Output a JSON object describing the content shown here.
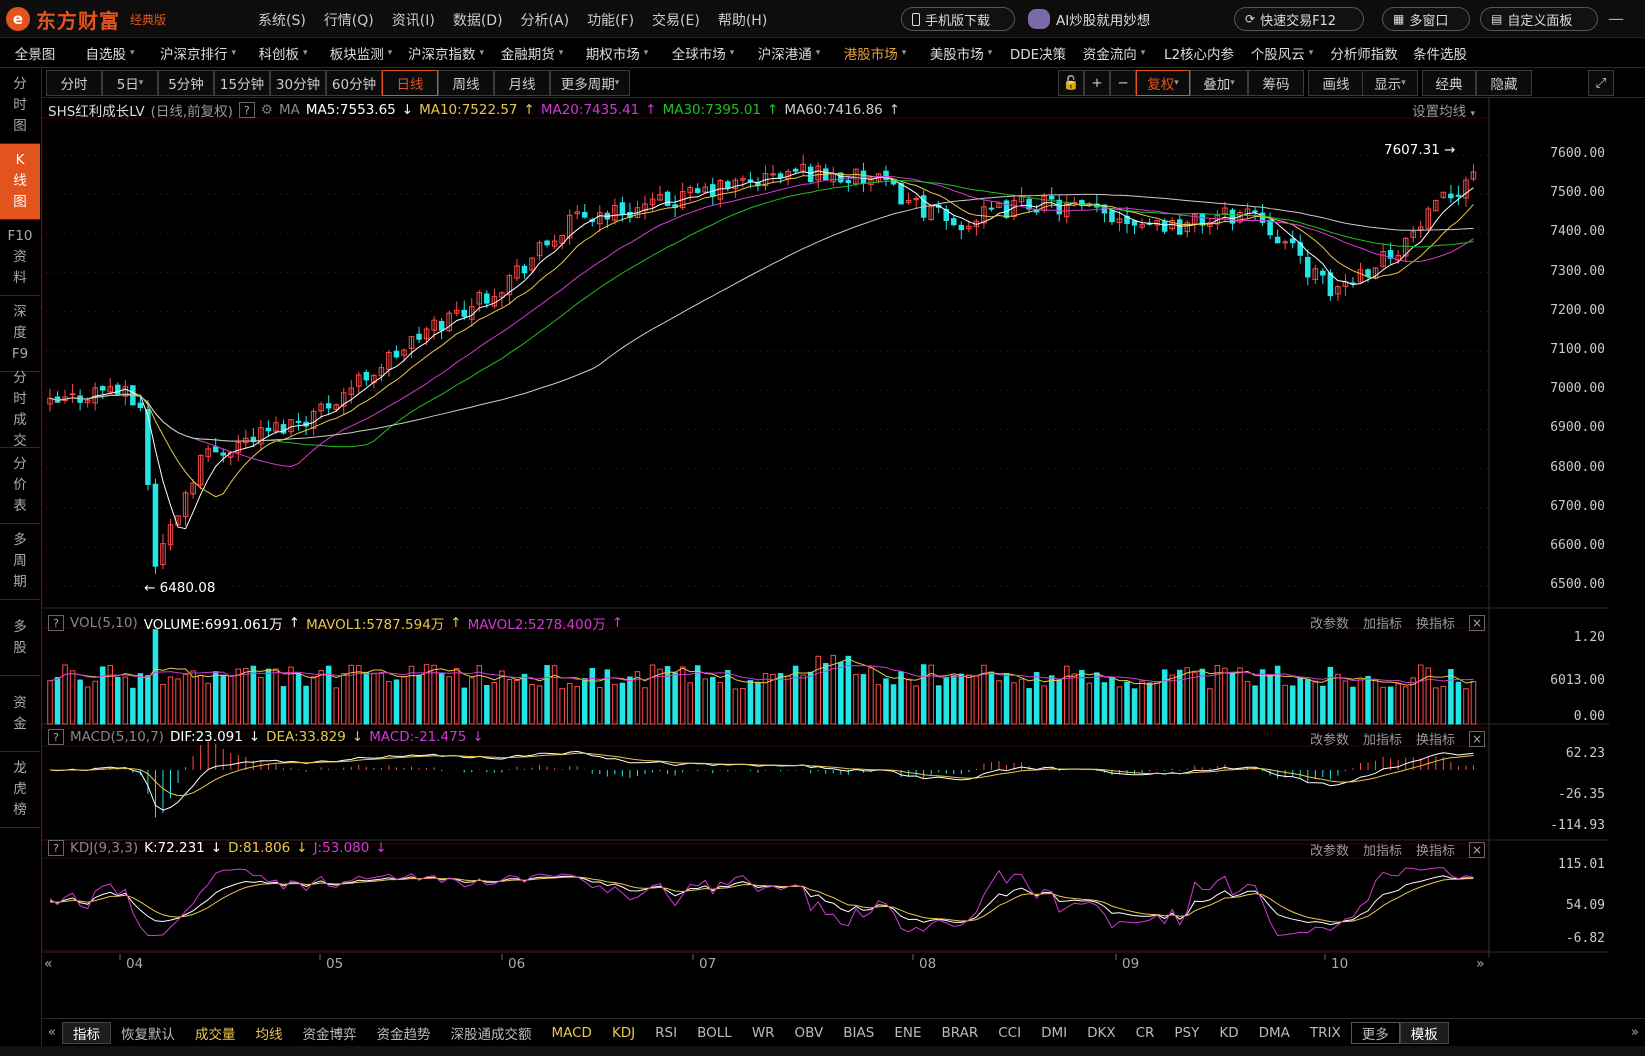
{
  "app": {
    "brand": "东方财富",
    "edition": "经典版",
    "menu": [
      "系统(S)",
      "行情(Q)",
      "资讯(I)",
      "数据(D)",
      "分析(A)",
      "功能(F)",
      "交易(E)",
      "帮助(H)"
    ],
    "mobile_btn": "手机版下载",
    "ai_btn": "AI炒股就用妙想",
    "quick_trade": "快速交易F12",
    "multi_window": "多窗口",
    "custom_panel": "自定义面板"
  },
  "nav": [
    {
      "label": "全景图",
      "dd": false
    },
    {
      "label": "自选股",
      "dd": true
    },
    {
      "label": "沪深京排行",
      "dd": true
    },
    {
      "label": "科创板",
      "dd": true
    },
    {
      "label": "板块监测",
      "dd": true
    },
    {
      "label": "沪深京指数",
      "dd": true
    },
    {
      "label": "金融期货",
      "dd": true
    },
    {
      "label": "期权市场",
      "dd": true
    },
    {
      "label": "全球市场",
      "dd": true
    },
    {
      "label": "沪深港通",
      "dd": true
    },
    {
      "label": "港股市场",
      "dd": true,
      "orange": true
    },
    {
      "label": "美股市场",
      "dd": true
    },
    {
      "label": "DDE决策",
      "dd": false
    },
    {
      "label": "资金流向",
      "dd": true
    },
    {
      "label": "L2核心内参",
      "dd": false
    },
    {
      "label": "个股风云",
      "dd": true
    },
    {
      "label": "分析师指数",
      "dd": false
    },
    {
      "label": "条件选股",
      "dd": false
    }
  ],
  "leftnav": [
    {
      "label": "分时图",
      "active": false
    },
    {
      "label": "K线图",
      "active": true
    },
    {
      "label": "F10资料",
      "active": false
    },
    {
      "label": "深度F9",
      "active": false
    },
    {
      "label": "分时成交",
      "active": false
    },
    {
      "label": "分价表",
      "active": false
    },
    {
      "label": "多周期",
      "active": false
    },
    {
      "label": "多股",
      "active": false
    },
    {
      "label": "资金",
      "active": false
    },
    {
      "label": "龙虎榜",
      "active": false
    }
  ],
  "periods": [
    "分时",
    "5日",
    "5分钟",
    "15分钟",
    "30分钟",
    "60分钟",
    "日线",
    "周线",
    "月线",
    "更多周期"
  ],
  "active_period": "日线",
  "tools": [
    "复权",
    "叠加",
    "筹码",
    "画线",
    "显示",
    "经典",
    "隐藏"
  ],
  "main_legend": {
    "name": "SHS红利成长LV",
    "mode": "(日线,前复权)",
    "ma": "MA",
    "ma5": "MA5:7553.65",
    "ma10": "MA10:7522.57",
    "ma20": "MA20:7435.41",
    "ma30": "MA30:7395.01",
    "ma60": "MA60:7416.86",
    "setting": "设置均线"
  },
  "price_axis": [
    "7600.00",
    "7500.00",
    "7400.00",
    "7300.00",
    "7200.00",
    "7100.00",
    "7000.00",
    "6900.00",
    "6800.00",
    "6700.00",
    "6600.00",
    "6500.00"
  ],
  "high_label": "7607.31",
  "low_label": "6480.08",
  "vol_legend": {
    "name": "VOL(5,10)",
    "volume": "VOLUME:6991.061万",
    "mavol1": "MAVOL1:5787.594万",
    "mavol2": "MAVOL2:5278.400万"
  },
  "vol_axis": [
    "1.20",
    "6013.00",
    "0.00"
  ],
  "macd_legend": {
    "name": "MACD(5,10,7)",
    "dif": "DIF:23.091",
    "dea": "DEA:33.829",
    "macd": "MACD:-21.475"
  },
  "macd_axis": [
    "62.23",
    "-26.35",
    "-114.93"
  ],
  "kdj_legend": {
    "name": "KDJ(9,3,3)",
    "k": "K:72.231",
    "d": "D:81.806",
    "j": "J:53.080"
  },
  "kdj_axis": [
    "115.01",
    "54.09",
    "-6.82"
  ],
  "panel_btns": [
    "改参数",
    "加指标",
    "换指标"
  ],
  "months": [
    "04",
    "05",
    "06",
    "07",
    "08",
    "09",
    "10"
  ],
  "bottom": [
    {
      "label": "指标",
      "cls": "active"
    },
    {
      "label": "恢复默认",
      "cls": ""
    },
    {
      "label": "成交量",
      "cls": "y"
    },
    {
      "label": "均线",
      "cls": "y"
    },
    {
      "label": "资金博弈",
      "cls": ""
    },
    {
      "label": "资金趋势",
      "cls": ""
    },
    {
      "label": "深股通成交额",
      "cls": ""
    },
    {
      "label": "MACD",
      "cls": "y"
    },
    {
      "label": "KDJ",
      "cls": "y"
    },
    {
      "label": "RSI",
      "cls": ""
    },
    {
      "label": "BOLL",
      "cls": ""
    },
    {
      "label": "WR",
      "cls": ""
    },
    {
      "label": "OBV",
      "cls": ""
    },
    {
      "label": "BIAS",
      "cls": ""
    },
    {
      "label": "ENE",
      "cls": ""
    },
    {
      "label": "BRAR",
      "cls": ""
    },
    {
      "label": "CCI",
      "cls": ""
    },
    {
      "label": "DMI",
      "cls": ""
    },
    {
      "label": "DKX",
      "cls": ""
    },
    {
      "label": "CR",
      "cls": ""
    },
    {
      "label": "PSY",
      "cls": ""
    },
    {
      "label": "KD",
      "cls": ""
    },
    {
      "label": "DMA",
      "cls": ""
    },
    {
      "label": "TRIX",
      "cls": ""
    },
    {
      "label": "更多",
      "cls": "more"
    },
    {
      "label": "模板",
      "cls": "active"
    }
  ],
  "colors": {
    "up": "#ff4a4a",
    "down": "#22e6e6",
    "ma5": "#ffffff",
    "ma10": "#e8c84a",
    "ma20": "#d23ad2",
    "ma30": "#20c020",
    "ma60": "#cccccc",
    "accent": "#e2531e"
  }
}
